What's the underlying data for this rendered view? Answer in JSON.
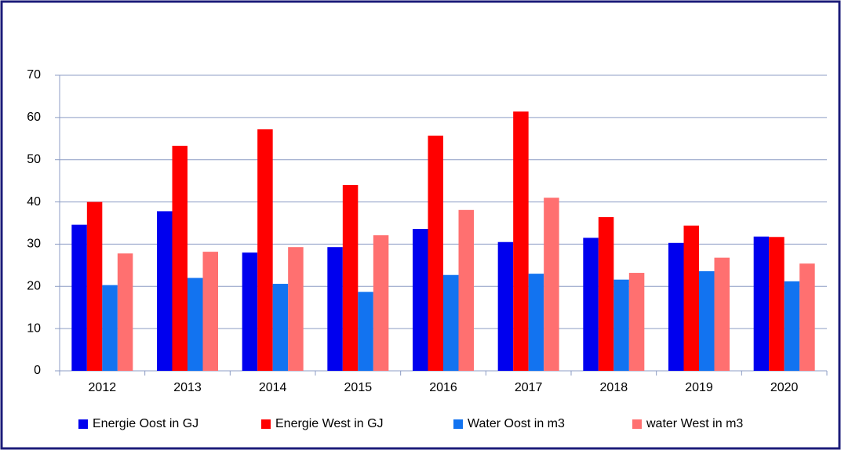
{
  "chart_data": {
    "type": "bar",
    "categories": [
      "2012",
      "2013",
      "2014",
      "2015",
      "2016",
      "2017",
      "2018",
      "2019",
      "2020"
    ],
    "series": [
      {
        "name": "Energie Oost in GJ",
        "color": "#0000ee",
        "values": [
          34.6,
          37.8,
          28,
          29.3,
          33.6,
          30.5,
          31.5,
          30.3,
          31.8
        ]
      },
      {
        "name": "Energie West in GJ",
        "color": "#ff0000",
        "values": [
          40,
          53.3,
          57.2,
          44,
          55.7,
          61.4,
          36.4,
          34.4,
          31.7
        ]
      },
      {
        "name": "Water Oost in m3",
        "color": "#1273f0",
        "values": [
          20.3,
          22,
          20.6,
          18.7,
          22.7,
          23,
          21.6,
          23.6,
          21.2
        ]
      },
      {
        "name": "water West in m3",
        "color": "#ff7070",
        "values": [
          27.8,
          28.2,
          29.3,
          32.1,
          38.1,
          41,
          23.2,
          26.8,
          25.4
        ]
      }
    ],
    "ylim": [
      0,
      70
    ],
    "yticks": [
      0,
      10,
      20,
      30,
      40,
      50,
      60,
      70
    ],
    "grid": true,
    "legend": "bottom"
  }
}
